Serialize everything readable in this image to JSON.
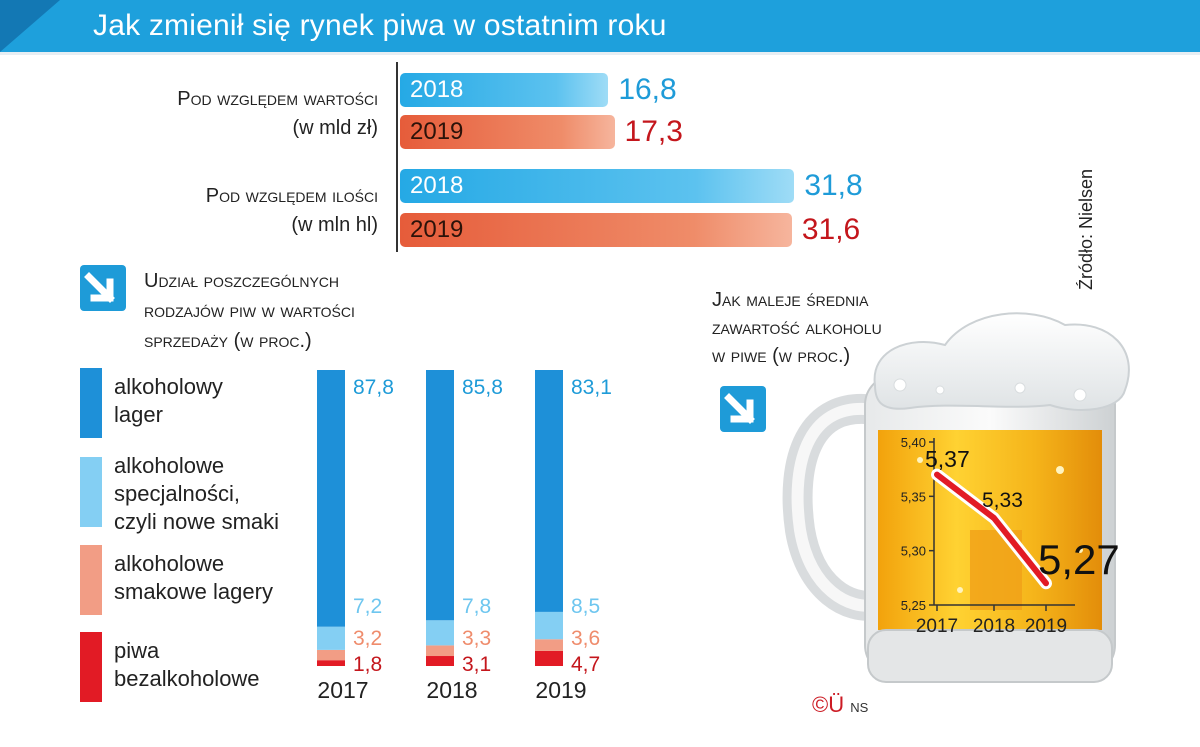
{
  "header": {
    "title": "Jak zmienił się rynek piwa w ostatnim roku"
  },
  "value_group": {
    "label_line1": "Pod względem wartości",
    "label_line2": "(w mld zł)"
  },
  "volume_group": {
    "label_line1": "Pod względem ilości",
    "label_line2": "(w mln hl)"
  },
  "share_section": {
    "title_line1": "Udział poszczególnych",
    "title_line2": "rodzajów piw w wartości",
    "title_line3": "sprzedaży (w proc.)"
  },
  "abv_section": {
    "title_line1": "Jak maleje średnia",
    "title_line2": "zawartość alkoholu",
    "title_line3": "w piwe (w proc.)"
  },
  "legend": [
    {
      "line1": "alkoholowy",
      "line2": "lager",
      "line3": "",
      "color": "#1e90d8"
    },
    {
      "line1": "alkoholowe",
      "line2": "specjalności,",
      "line3": "czyli nowe smaki",
      "color": "#84cff3"
    },
    {
      "line1": "alkoholowe",
      "line2": "smakowe lagery",
      "line3": "",
      "color": "#f29d85"
    },
    {
      "line1": "piwa",
      "line2": "bezalkoholowe",
      "line3": "",
      "color": "#e21b25"
    }
  ],
  "credit": {
    "mark": "©Ü",
    "initials": "NS"
  },
  "source": "Źródło: Nielsen",
  "chart_data": [
    {
      "type": "bar",
      "orientation": "horizontal",
      "categories": [
        "2018",
        "2019"
      ],
      "values": [
        16.8,
        17.3
      ],
      "value_labels": [
        "16,8",
        "17,3"
      ],
      "colors": [
        "#22a6e3",
        "#e8603e"
      ],
      "value_label_colors": [
        "#1e9bd8",
        "#c4161c"
      ]
    },
    {
      "type": "bar",
      "orientation": "horizontal",
      "categories": [
        "2018",
        "2019"
      ],
      "values": [
        31.8,
        31.6
      ],
      "value_labels": [
        "31,8",
        "31,6"
      ],
      "colors": [
        "#22a6e3",
        "#e8603e"
      ],
      "value_label_colors": [
        "#1e9bd8",
        "#c4161c"
      ]
    },
    {
      "type": "bar",
      "stacked": true,
      "categories": [
        "2017",
        "2018",
        "2019"
      ],
      "series": [
        {
          "values": [
            87.8,
            85.8,
            83.1
          ],
          "labels": [
            "87,8",
            "85,8",
            "83,1"
          ],
          "color": "#1e90d8",
          "label_color": "#1e9bd8"
        },
        {
          "values": [
            7.2,
            7.8,
            8.5
          ],
          "labels": [
            "7,2",
            "7,8",
            "8,5"
          ],
          "color": "#84cff3",
          "label_color": "#6ec6ef"
        },
        {
          "values": [
            3.2,
            3.3,
            3.6
          ],
          "labels": [
            "3,2",
            "3,3",
            "3,6"
          ],
          "color": "#f29d85",
          "label_color": "#ef8c6c"
        },
        {
          "values": [
            1.8,
            3.1,
            4.7
          ],
          "labels": [
            "1,8",
            "3,1",
            "4,7"
          ],
          "color": "#e21b25",
          "label_color": "#c4161c"
        }
      ]
    },
    {
      "type": "line",
      "x": [
        "2017",
        "2018",
        "2019"
      ],
      "y": [
        5.37,
        5.33,
        5.27
      ],
      "point_labels": [
        "5,37",
        "5,33",
        "5,27"
      ],
      "ylim": [
        5.25,
        5.4
      ],
      "yticks": [
        "5,25",
        "5,30",
        "5,35",
        "5,40"
      ],
      "line_color": "#e21b25"
    }
  ]
}
